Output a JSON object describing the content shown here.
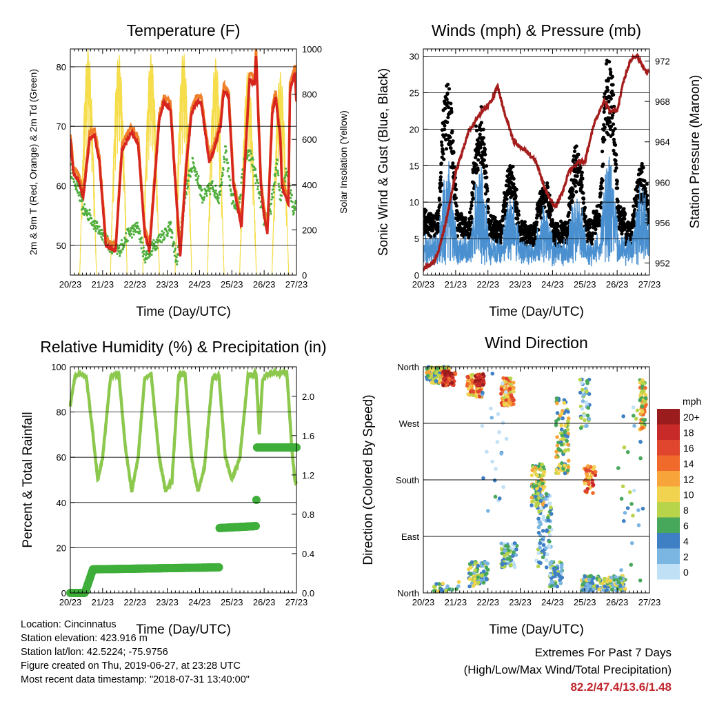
{
  "chart_data": [
    {
      "type": "line",
      "title": "Temperature (F)",
      "xlabel": "Time (Day/UTC)",
      "ylabel": "2m & 9m T (Red, Orange) & 2m Td (Green)",
      "y2label": "Solar Insolation (Yellow)",
      "xticks": [
        "20/23",
        "21/23",
        "22/23",
        "23/23",
        "24/23",
        "25/23",
        "26/23",
        "27/23"
      ],
      "ylim": [
        45,
        83
      ],
      "yticks": [
        50,
        60,
        70,
        80
      ],
      "y2lim": [
        0,
        1000
      ],
      "y2ticks": [
        0,
        200,
        400,
        600,
        800,
        1000
      ],
      "grid": true,
      "colors": {
        "t2m": "#d7261e",
        "t9m": "#f07f2a",
        "td": "#4fae3c",
        "solar": "#f5dd4c"
      },
      "series": [
        {
          "key": "t2m",
          "x": [
            0,
            0.1,
            0.25,
            0.4,
            0.6,
            0.75,
            0.9,
            1.1,
            1.4,
            1.6,
            1.9,
            2.1,
            2.3,
            2.45,
            2.6,
            2.75,
            2.9,
            3.1,
            3.4,
            3.6,
            3.75,
            3.9,
            4.05,
            4.3,
            4.45,
            4.65,
            4.75,
            4.9,
            5.05,
            5.3,
            5.45,
            5.55,
            5.7,
            5.75,
            5.9,
            6.0,
            6.1,
            6.25,
            6.35,
            6.5,
            6.55,
            6.75,
            6.8,
            6.9,
            6.95,
            7.0
          ],
          "values": [
            68,
            62,
            61,
            58,
            68,
            68.5,
            64,
            50,
            49,
            66,
            69,
            67,
            52,
            49,
            60,
            71,
            74,
            73,
            48,
            64,
            72,
            74,
            74,
            64,
            66,
            70,
            76,
            75,
            60,
            53,
            68,
            78,
            77,
            82,
            60,
            55,
            52,
            72,
            75,
            68,
            60,
            57,
            76,
            78,
            79,
            74
          ]
        },
        {
          "key": "td",
          "x": [
            0,
            0.2,
            0.4,
            0.6,
            0.8,
            1.0,
            1.2,
            1.5,
            1.8,
            2.1,
            2.3,
            2.6,
            2.9,
            3.1,
            3.3,
            3.6,
            3.8,
            4.1,
            4.4,
            4.6,
            4.8,
            5.0,
            5.2,
            5.4,
            5.6,
            5.8,
            6.0,
            6.2,
            6.4,
            6.5,
            6.7,
            6.9,
            7.0
          ],
          "values": [
            63,
            60,
            56,
            55,
            53,
            52,
            50,
            49,
            52,
            53,
            48,
            50,
            52,
            53,
            47,
            60,
            64,
            58,
            60,
            58,
            66,
            58,
            56,
            65,
            65,
            60,
            54,
            56,
            64,
            58,
            63,
            56,
            57
          ]
        },
        {
          "key": "solar",
          "peaks_x": [
            0.55,
            1.5,
            2.5,
            3.5,
            4.5,
            5.5,
            6.5
          ],
          "peaks": [
            1000,
            980,
            980,
            990,
            960,
            910,
            900
          ]
        }
      ]
    },
    {
      "type": "scatter",
      "title": "Winds (mph) & Pressure (mb)",
      "xlabel": "Time (Day/UTC)",
      "ylabel": "Sonic Wind & Gust (Blue, Black)",
      "y2label": "Station Pressure (Maroon)",
      "xticks": [
        "20/23",
        "21/23",
        "22/23",
        "23/23",
        "24/23",
        "25/23",
        "26/23",
        "27/23"
      ],
      "ylim": [
        0,
        31
      ],
      "yticks": [
        0,
        5,
        10,
        15,
        20,
        25,
        30
      ],
      "y2lim": [
        950.8,
        973.2
      ],
      "y2ticks": [
        952,
        956,
        960,
        964,
        968,
        972
      ],
      "grid": true,
      "colors": {
        "wind": "#4a90d0",
        "gust": "#000000",
        "pressure": "#a51c1c"
      },
      "gust_peaks_x": [
        0.75,
        1.75,
        2.7,
        3.75,
        4.75,
        5.75,
        6.75
      ],
      "gust_peaks": [
        25,
        21,
        13,
        11,
        16,
        29,
        13
      ],
      "wind_peaks": [
        13,
        13,
        9,
        7,
        9,
        14,
        10
      ],
      "pressure": {
        "x": [
          0,
          0.3,
          0.45,
          0.7,
          1.0,
          1.4,
          1.8,
          2.1,
          2.3,
          2.5,
          2.8,
          3.0,
          3.2,
          3.5,
          3.8,
          4.1,
          4.3,
          4.5,
          4.8,
          5.0,
          5.3,
          5.6,
          5.8,
          6.0,
          6.2,
          6.4,
          6.6,
          6.8,
          6.9,
          7.0
        ],
        "values": [
          951.5,
          952,
          953,
          956,
          961,
          965,
          967,
          968,
          969.5,
          967,
          964,
          963.5,
          963,
          962,
          959,
          957.5,
          959,
          961,
          962,
          962,
          966,
          968,
          967,
          967,
          970,
          972,
          972.5,
          971.5,
          971,
          971
        ]
      }
    },
    {
      "type": "line",
      "title": "Relative Humidity (%) & Precipitation (in)",
      "xlabel": "Time (Day/UTC)",
      "ylabel": "Percent & Total Rainfall",
      "xticks": [
        "20/23",
        "21/23",
        "22/23",
        "23/23",
        "24/23",
        "25/23",
        "26/23",
        "27/23"
      ],
      "ylim": [
        0,
        100
      ],
      "yticks": [
        0,
        20,
        40,
        60,
        80,
        100
      ],
      "y2lim": [
        0,
        2.3
      ],
      "y2ticks": [
        0.0,
        0.4,
        0.8,
        1.2,
        1.6,
        2.0
      ],
      "grid": true,
      "colors": {
        "rh": "#8dc84e",
        "precip": "#3fae3a"
      },
      "series": [
        {
          "key": "rh",
          "x": [
            0,
            0.15,
            0.3,
            0.5,
            0.7,
            0.85,
            1.0,
            1.25,
            1.5,
            1.7,
            1.9,
            2.1,
            2.3,
            2.5,
            2.75,
            2.95,
            3.15,
            3.35,
            3.55,
            3.75,
            3.95,
            4.15,
            4.4,
            4.6,
            4.8,
            5.0,
            5.25,
            5.5,
            5.75,
            5.85,
            5.95,
            6.1,
            6.3,
            6.5,
            6.7,
            6.85,
            6.95,
            7.0
          ],
          "values": [
            83,
            96,
            97,
            95,
            70,
            50,
            60,
            96,
            97,
            65,
            45,
            60,
            95,
            97,
            60,
            45,
            50,
            96,
            97,
            60,
            45,
            55,
            95,
            96,
            60,
            50,
            60,
            96,
            97,
            70,
            94,
            97,
            97,
            97,
            98,
            65,
            50,
            48
          ]
        },
        {
          "key": "precip",
          "x": [
            0,
            0.45,
            0.7,
            4.6,
            4.62,
            5.75,
            5.78,
            7.0
          ],
          "values": [
            0,
            0,
            0.24,
            0.26,
            0.66,
            0.68,
            1.48,
            1.48
          ]
        }
      ]
    },
    {
      "type": "scatter",
      "title": "Wind Direction",
      "xlabel": "Time (Day/UTC)",
      "ylabel": "Direction (Colored By Speed)",
      "xticks": [
        "20/23",
        "21/23",
        "22/23",
        "23/23",
        "24/23",
        "25/23",
        "26/23",
        "27/23"
      ],
      "yticks": [
        "North",
        "West",
        "South",
        "East",
        "North"
      ],
      "ylim": [
        0,
        360
      ],
      "grid": true,
      "legend": {
        "title": "mph",
        "labels": [
          "20+",
          "18",
          "16",
          "14",
          "12",
          "10",
          "8",
          "6",
          "4",
          "2",
          "0"
        ],
        "colors": [
          "#9b1c1c",
          "#c82a2a",
          "#e0462d",
          "#f06a2c",
          "#f7a53b",
          "#f1d34f",
          "#b7d44b",
          "#47a75a",
          "#3f7fc3",
          "#7bb6e3",
          "#bfe0f5"
        ]
      }
    }
  ],
  "info": {
    "location": "Location: Cincinnatus",
    "elevation": "Station elevation: 423.916 m",
    "latlon": "Station lat/lon: 42.5224; -75.9756",
    "created": "Figure created on Thu, 2019-06-27, at 23:28 UTC",
    "recent": "Most recent data timestamp: \"2018-07-31 13:40:00\""
  },
  "extremes": {
    "title": "Extremes For Past 7 Days",
    "subtitle": "(High/Low/Max Wind/Total Precipitation)",
    "values": "82.2/47.4/13.6/1.48"
  }
}
